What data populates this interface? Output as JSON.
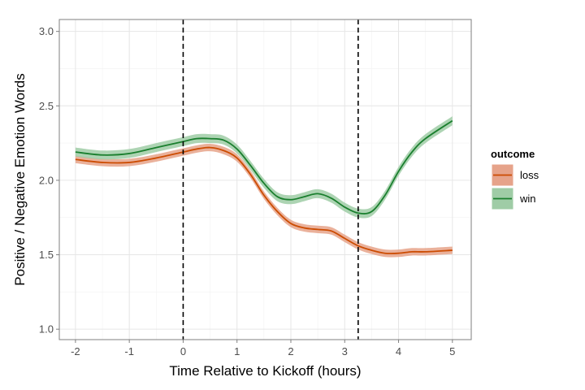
{
  "chart_data": {
    "type": "line",
    "xlabel": "Time Relative to Kickoff (hours)",
    "ylabel": "Positive / Negative Emotion Words",
    "xlim": [
      -2.3,
      5.35
    ],
    "ylim": [
      0.93,
      3.08
    ],
    "xticks": [
      -2,
      -1,
      0,
      1,
      2,
      3,
      4,
      5
    ],
    "yticks": [
      1.0,
      1.5,
      2.0,
      2.5,
      3.0
    ],
    "ytick_labels": [
      "1.0",
      "1.5",
      "2.0",
      "2.5",
      "3.0"
    ],
    "grid": true,
    "vlines": [
      0,
      3.25
    ],
    "legend": {
      "title": "outcome",
      "position": "right"
    },
    "series": [
      {
        "name": "loss",
        "color": "#cc4c02",
        "band_color": "#e6a38a",
        "band_halfwidth": 0.025,
        "x": [
          -2,
          -1.5,
          -1,
          -0.5,
          0,
          0.25,
          0.5,
          0.75,
          1,
          1.25,
          1.5,
          1.75,
          2,
          2.25,
          2.5,
          2.75,
          3,
          3.25,
          3.5,
          3.75,
          4,
          4.25,
          4.5,
          5
        ],
        "y": [
          2.14,
          2.12,
          2.12,
          2.15,
          2.19,
          2.21,
          2.22,
          2.2,
          2.15,
          2.04,
          1.9,
          1.79,
          1.71,
          1.68,
          1.67,
          1.66,
          1.61,
          1.56,
          1.53,
          1.51,
          1.51,
          1.52,
          1.52,
          1.53
        ]
      },
      {
        "name": "win",
        "color": "#1a7f2e",
        "band_color": "#9fcca6",
        "band_halfwidth": 0.03,
        "x": [
          -2,
          -1.5,
          -1,
          -0.5,
          0,
          0.25,
          0.5,
          0.75,
          1,
          1.25,
          1.5,
          1.75,
          2,
          2.25,
          2.5,
          2.75,
          3,
          3.25,
          3.5,
          3.75,
          4,
          4.25,
          4.5,
          5
        ],
        "y": [
          2.19,
          2.17,
          2.18,
          2.22,
          2.26,
          2.28,
          2.28,
          2.27,
          2.21,
          2.1,
          1.98,
          1.89,
          1.87,
          1.89,
          1.91,
          1.88,
          1.82,
          1.78,
          1.79,
          1.9,
          2.06,
          2.19,
          2.28,
          2.4
        ]
      }
    ]
  }
}
